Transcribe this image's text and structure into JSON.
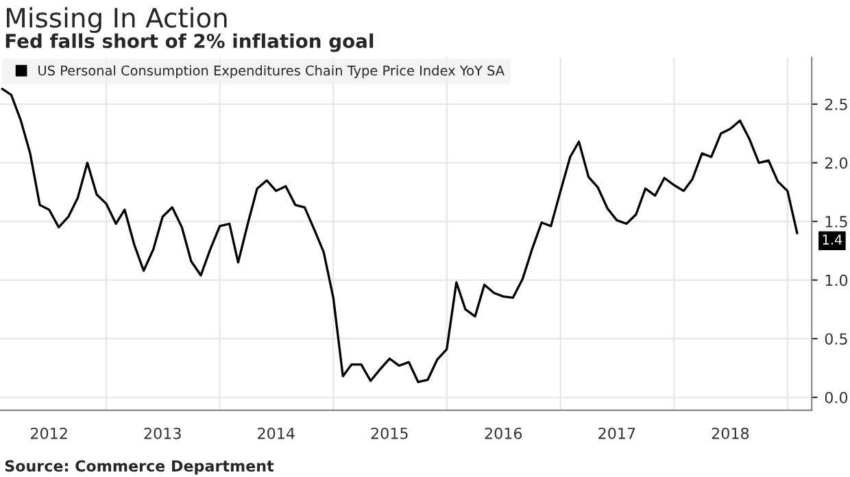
{
  "chart_data": {
    "type": "line",
    "title": "Missing In Action",
    "subtitle": "Fed falls short of 2% inflation goal",
    "x": [
      "2012-02",
      "2012-03",
      "2012-04",
      "2012-05",
      "2012-06",
      "2012-07",
      "2012-08",
      "2012-09",
      "2012-10",
      "2012-11",
      "2012-12",
      "2013-01",
      "2013-02",
      "2013-03",
      "2013-04",
      "2013-05",
      "2013-06",
      "2013-07",
      "2013-08",
      "2013-09",
      "2013-10",
      "2013-11",
      "2013-12",
      "2014-01",
      "2014-02",
      "2014-03",
      "2014-04",
      "2014-05",
      "2014-06",
      "2014-07",
      "2014-08",
      "2014-09",
      "2014-10",
      "2014-11",
      "2014-12",
      "2015-01",
      "2015-02",
      "2015-03",
      "2015-04",
      "2015-05",
      "2015-06",
      "2015-07",
      "2015-08",
      "2015-09",
      "2015-10",
      "2015-11",
      "2015-12",
      "2016-01",
      "2016-02",
      "2016-03",
      "2016-04",
      "2016-05",
      "2016-06",
      "2016-07",
      "2016-08",
      "2016-09",
      "2016-10",
      "2016-11",
      "2016-12",
      "2017-01",
      "2017-02",
      "2017-03",
      "2017-04",
      "2017-05",
      "2017-06",
      "2017-07",
      "2017-08",
      "2017-09",
      "2017-10",
      "2017-11",
      "2017-12",
      "2018-01",
      "2018-02",
      "2018-03",
      "2018-04",
      "2018-05",
      "2018-06",
      "2018-07",
      "2018-08",
      "2018-09",
      "2018-10",
      "2018-11",
      "2018-12",
      "2019-01",
      "2019-02"
    ],
    "series": [
      {
        "name": "US Personal Consumption Expenditures Chain Type Price Index YoY SA",
        "color": "#000000",
        "values": [
          2.63,
          2.58,
          2.36,
          2.08,
          1.64,
          1.6,
          1.45,
          1.54,
          1.7,
          2.0,
          1.73,
          1.65,
          1.48,
          1.6,
          1.3,
          1.08,
          1.26,
          1.54,
          1.62,
          1.45,
          1.16,
          1.04,
          1.26,
          1.46,
          1.48,
          1.15,
          1.48,
          1.78,
          1.85,
          1.76,
          1.8,
          1.64,
          1.62,
          1.43,
          1.24,
          0.85,
          0.18,
          0.28,
          0.28,
          0.14,
          0.24,
          0.33,
          0.27,
          0.3,
          0.13,
          0.15,
          0.32,
          0.41,
          0.98,
          0.75,
          0.69,
          0.96,
          0.89,
          0.86,
          0.85,
          1.01,
          1.26,
          1.49,
          1.46,
          1.76,
          2.05,
          2.18,
          1.88,
          1.79,
          1.61,
          1.51,
          1.48,
          1.56,
          1.78,
          1.72,
          1.87,
          1.81,
          1.76,
          1.86,
          2.08,
          2.05,
          2.25,
          2.29,
          2.36,
          2.2,
          2.0,
          2.02,
          1.84,
          1.76,
          1.4
        ]
      }
    ],
    "xlim": [
      "2012-01-25",
      "2019-03-20"
    ],
    "xticks": [
      {
        "value": "2012-07-01",
        "label": "2012"
      },
      {
        "value": "2013-01-01",
        "label": null
      },
      {
        "value": "2013-07-01",
        "label": "2013"
      },
      {
        "value": "2014-01-01",
        "label": null
      },
      {
        "value": "2014-07-01",
        "label": "2014"
      },
      {
        "value": "2015-01-01",
        "label": null
      },
      {
        "value": "2015-07-01",
        "label": "2015"
      },
      {
        "value": "2016-01-01",
        "label": null
      },
      {
        "value": "2016-07-01",
        "label": "2016"
      },
      {
        "value": "2017-01-01",
        "label": null
      },
      {
        "value": "2017-07-01",
        "label": "2017"
      },
      {
        "value": "2018-01-01",
        "label": null
      },
      {
        "value": "2018-07-01",
        "label": "2018"
      },
      {
        "value": "2019-01-01",
        "label": null
      }
    ],
    "ylim": [
      -0.11,
      2.9
    ],
    "yticks": [
      {
        "value": 0,
        "label": "0.0"
      },
      {
        "value": 0.5,
        "label": "0.5"
      },
      {
        "value": 1,
        "label": "1.0"
      },
      {
        "value": 1.5,
        "label": "1.5"
      },
      {
        "value": 2,
        "label": "2.0"
      },
      {
        "value": 2.5,
        "label": "2.5"
      }
    ],
    "grid": true,
    "legend": "top left",
    "marker": "none",
    "line_style": "solid",
    "annotations": [
      {
        "text": "1.4",
        "x": "2019-02",
        "y": 1.4
      },
      "Source: Commerce Department"
    ]
  }
}
